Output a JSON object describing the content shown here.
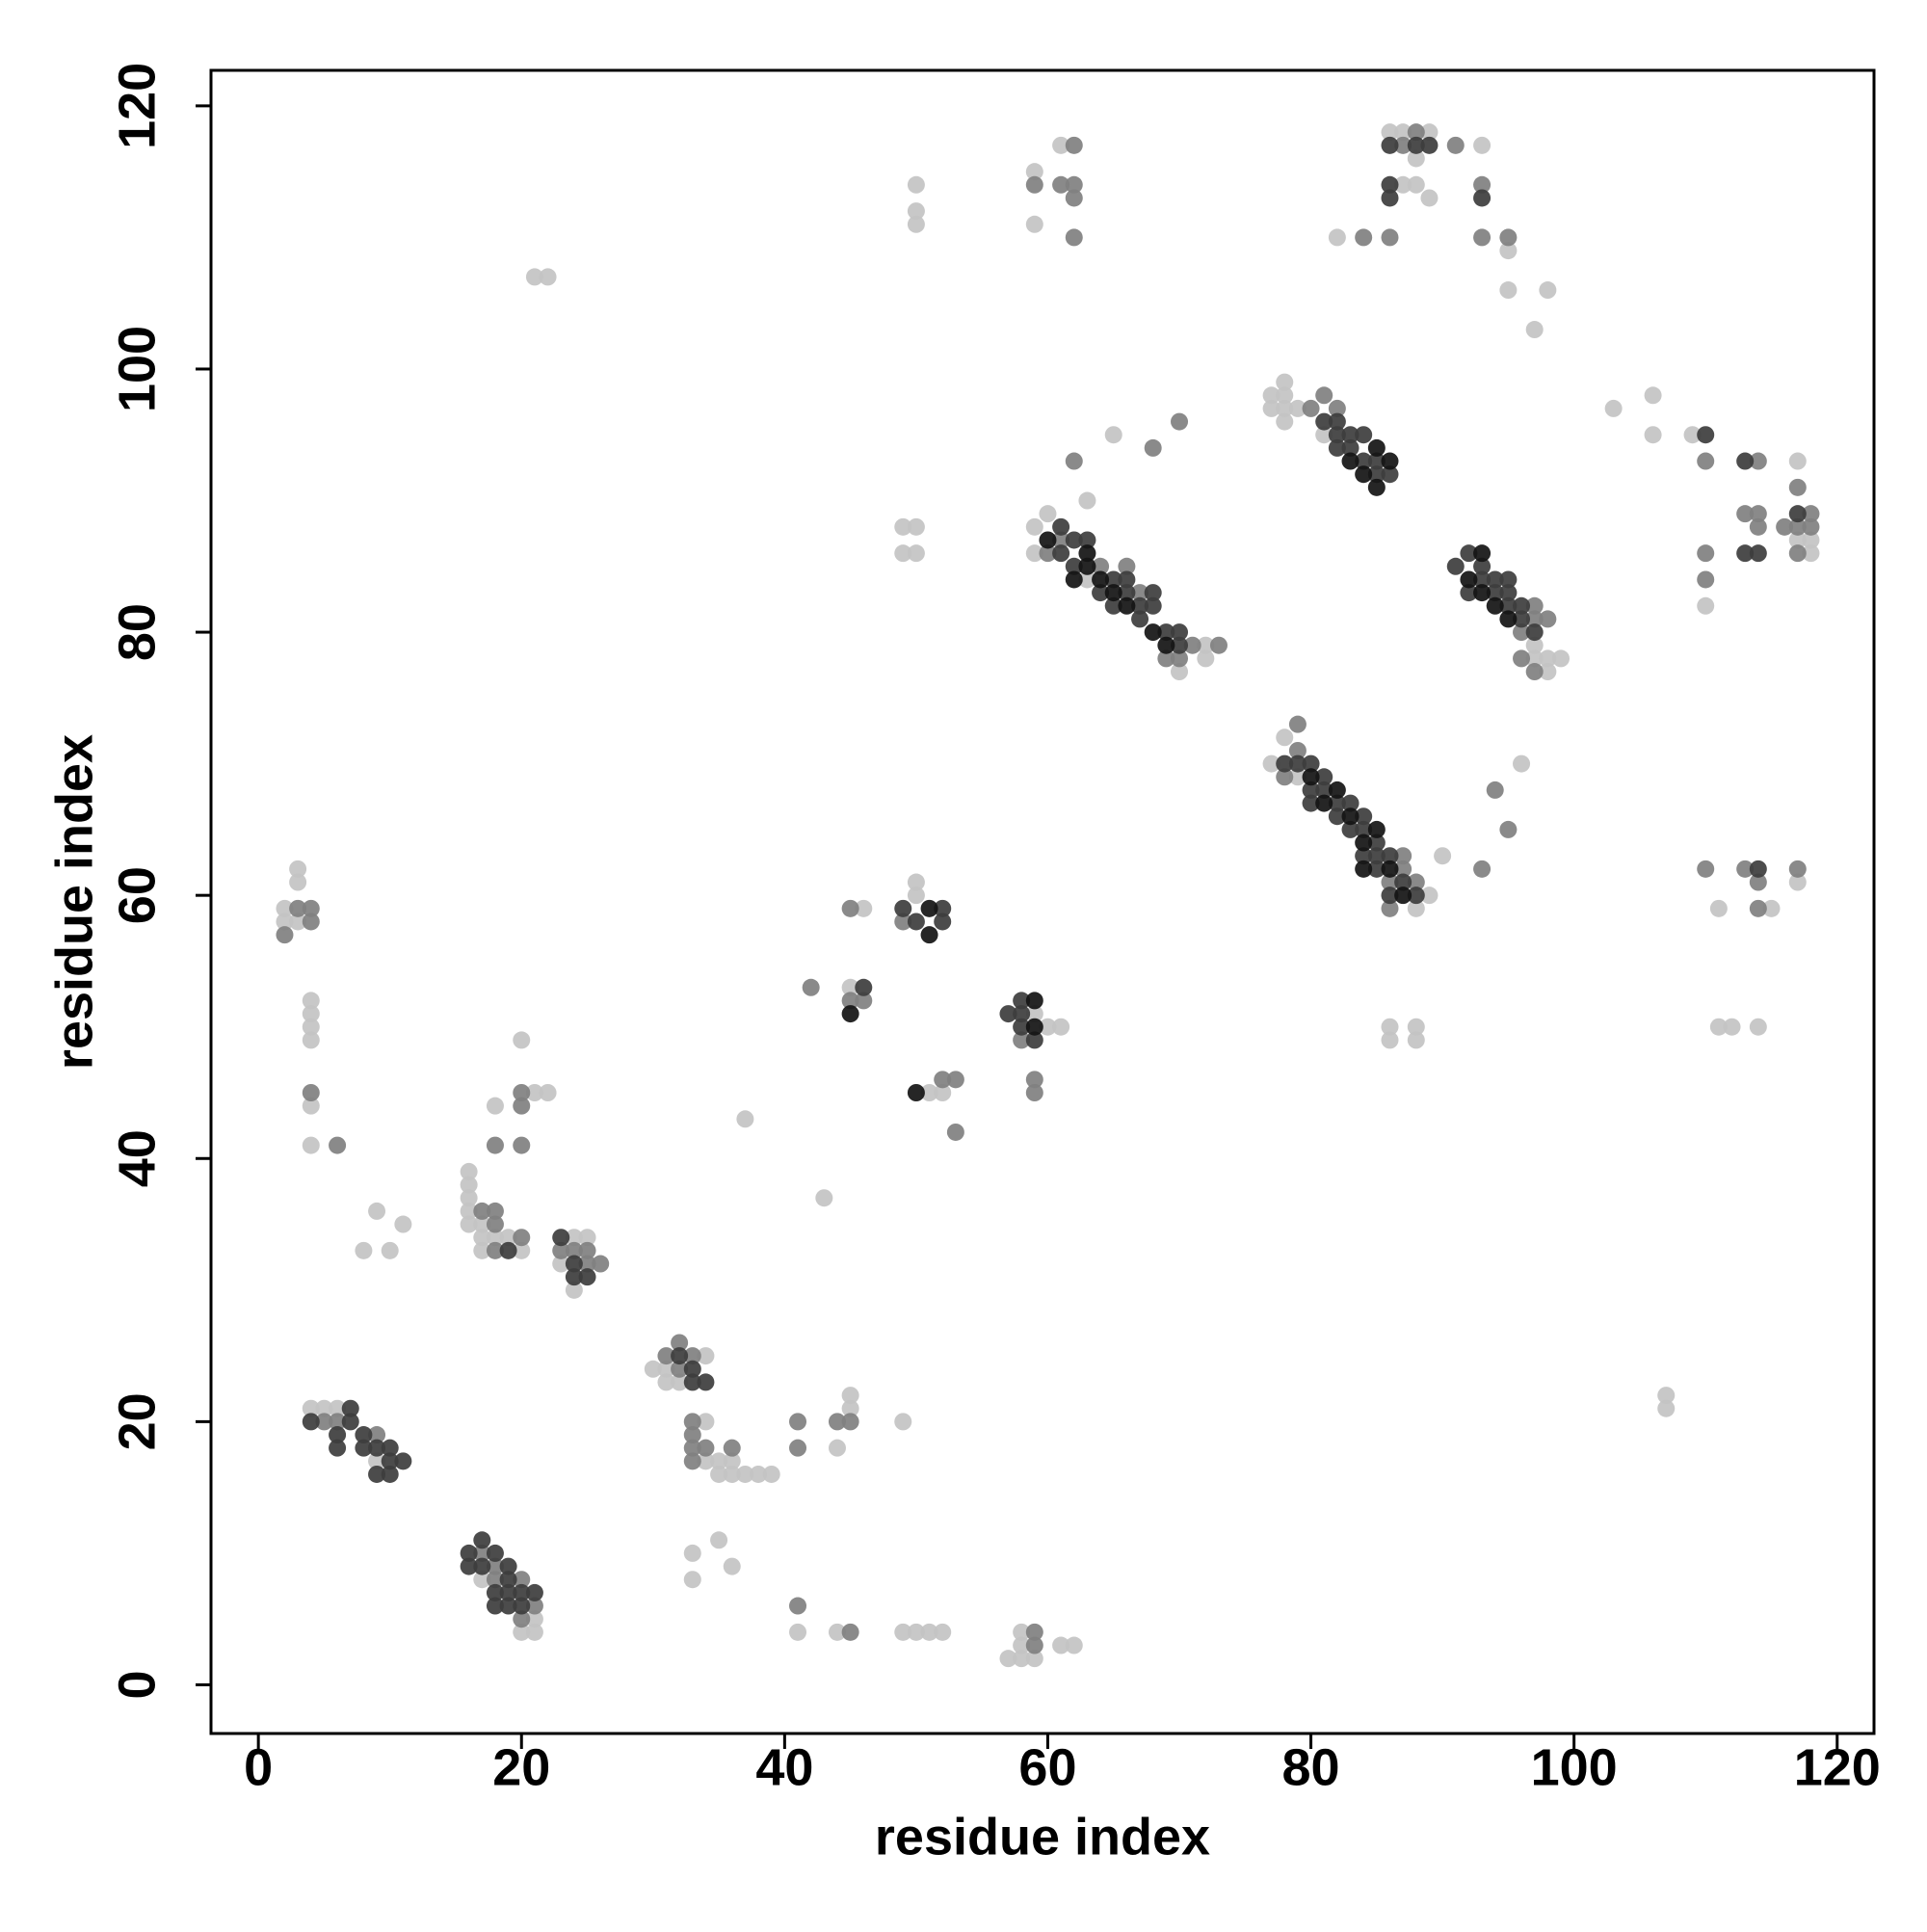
{
  "chart_data": {
    "type": "scatter",
    "xlabel": "residue index",
    "ylabel": "residue index",
    "xlim": [
      -3.6,
      122.8
    ],
    "ylim": [
      -3.7,
      122.7
    ],
    "xticks": [
      0,
      20,
      40,
      60,
      80,
      100,
      120
    ],
    "yticks": [
      0,
      20,
      40,
      60,
      80,
      100,
      120
    ],
    "series": [
      {
        "color": "#c3c3c3",
        "x": [
          3,
          3,
          2,
          2,
          3,
          4,
          4,
          4,
          4,
          4,
          4,
          4,
          5,
          6,
          9,
          17,
          20,
          21,
          21,
          16,
          16,
          16,
          16,
          16,
          17,
          17,
          18,
          19,
          20,
          17,
          18,
          8,
          9,
          10,
          11,
          20,
          21,
          22,
          21,
          22,
          23,
          24,
          24,
          25,
          30,
          31,
          31,
          32,
          34,
          34,
          34,
          35,
          35,
          36,
          36,
          37,
          38,
          39,
          33,
          33,
          35,
          36,
          37,
          43,
          44,
          45,
          45,
          41,
          44,
          49,
          49,
          50,
          51,
          52,
          46,
          45,
          50,
          50,
          51,
          52,
          49,
          50,
          49,
          50,
          50,
          50,
          50,
          59,
          60,
          61,
          57,
          58,
          58,
          58,
          59,
          61,
          62,
          59,
          59,
          61,
          59,
          59,
          60,
          63,
          65,
          63,
          70,
          72,
          72,
          77,
          78,
          79,
          77,
          77,
          78,
          78,
          78,
          78,
          79,
          81,
          86,
          86,
          88,
          88,
          88,
          89,
          96,
          97,
          97,
          98,
          98,
          99,
          82,
          86,
          87,
          87,
          88,
          88,
          89,
          89,
          93,
          95,
          95,
          97,
          98,
          103,
          106,
          106,
          109,
          110,
          117,
          118,
          118,
          117,
          111,
          115,
          117,
          111,
          112,
          114,
          107,
          107,
          90
        ],
        "y": [
          62,
          61,
          59,
          58,
          58,
          52,
          51,
          50,
          49,
          44,
          41,
          21,
          21,
          21,
          17,
          8,
          4,
          5,
          4,
          39,
          38,
          37,
          36,
          35,
          35,
          34,
          34,
          34,
          33,
          33,
          44,
          33,
          36,
          33,
          35,
          49,
          45,
          45,
          107,
          107,
          32,
          30,
          34,
          34,
          24,
          24,
          23,
          23,
          25,
          20,
          17,
          17,
          16,
          17,
          16,
          16,
          16,
          16,
          10,
          8,
          11,
          9,
          43,
          37,
          18,
          21,
          22,
          4,
          4,
          20,
          4,
          4,
          4,
          4,
          59,
          53,
          61,
          60,
          45,
          45,
          88,
          88,
          86,
          86,
          114,
          112,
          111,
          51,
          50,
          50,
          2,
          2,
          3,
          4,
          2,
          3,
          3,
          115,
          111,
          117,
          88,
          86,
          89,
          84,
          95,
          90,
          77,
          79,
          78,
          70,
          72,
          69,
          98,
          97,
          99,
          98,
          97,
          96,
          97,
          95,
          50,
          49,
          50,
          49,
          59,
          60,
          70,
          79,
          78,
          78,
          77,
          78,
          110,
          118,
          118,
          114,
          116,
          114,
          118,
          113,
          117,
          109,
          106,
          103,
          106,
          97,
          98,
          95,
          95,
          82,
          93,
          87,
          86,
          87,
          59,
          59,
          61,
          50,
          50,
          50,
          22,
          21,
          63
        ]
      },
      {
        "color": "#808080",
        "x": [
          3,
          4,
          4,
          2,
          4,
          6,
          5,
          6,
          9,
          20,
          18,
          20,
          21,
          17,
          18,
          17,
          18,
          18,
          18,
          20,
          18,
          20,
          20,
          20,
          23,
          24,
          25,
          26,
          25,
          31,
          32,
          32,
          33,
          33,
          33,
          33,
          33,
          34,
          36,
          42,
          41,
          41,
          44,
          45,
          41,
          45,
          45,
          45,
          46,
          49,
          52,
          53,
          53,
          59,
          59,
          58,
          59,
          59,
          61,
          62,
          62,
          62,
          62,
          59,
          60,
          61,
          64,
          66,
          67,
          69,
          70,
          71,
          73,
          62,
          68,
          70,
          78,
          79,
          79,
          80,
          81,
          82,
          86,
          87,
          87,
          86,
          88,
          93,
          94,
          95,
          96,
          97,
          97,
          96,
          98,
          97,
          84,
          86,
          87,
          88,
          91,
          93,
          93,
          95,
          110,
          110,
          110,
          114,
          113,
          114,
          114,
          116,
          117,
          117,
          117,
          118,
          118,
          110,
          113,
          114,
          114,
          117
        ],
        "y": [
          59,
          59,
          58,
          57,
          45,
          41,
          20,
          20,
          19,
          8,
          8,
          5,
          6,
          10,
          9,
          36,
          36,
          35,
          33,
          34,
          41,
          41,
          45,
          44,
          33,
          33,
          33,
          32,
          32,
          25,
          26,
          24,
          25,
          20,
          19,
          18,
          17,
          18,
          18,
          53,
          20,
          18,
          20,
          20,
          6,
          4,
          59,
          52,
          52,
          58,
          46,
          46,
          42,
          46,
          45,
          49,
          4,
          3,
          114,
          117,
          114,
          113,
          110,
          114,
          86,
          87,
          85,
          85,
          83,
          78,
          78,
          79,
          79,
          93,
          94,
          96,
          69,
          73,
          71,
          97,
          98,
          97,
          61,
          62,
          63,
          59,
          61,
          62,
          68,
          65,
          80,
          82,
          81,
          78,
          81,
          77,
          110,
          110,
          117,
          118,
          117,
          114,
          110,
          110,
          93,
          86,
          84,
          93,
          89,
          89,
          88,
          88,
          91,
          88,
          86,
          89,
          88,
          62,
          62,
          59,
          61,
          62
        ]
      },
      {
        "color": "#3d3d3d",
        "x": [
          4,
          6,
          6,
          7,
          7,
          8,
          8,
          9,
          9,
          10,
          10,
          10,
          11,
          16,
          16,
          17,
          17,
          18,
          18,
          18,
          19,
          19,
          19,
          19,
          20,
          20,
          21,
          19,
          23,
          24,
          25,
          24,
          32,
          33,
          33,
          34,
          49,
          50,
          52,
          52,
          46,
          58,
          58,
          58,
          57,
          59,
          61,
          61,
          62,
          62,
          63,
          64,
          65,
          65,
          66,
          66,
          67,
          67,
          68,
          68,
          69,
          70,
          70,
          78,
          79,
          80,
          80,
          80,
          81,
          81,
          82,
          82,
          83,
          83,
          84,
          84,
          84,
          85,
          85,
          85,
          86,
          86,
          87,
          88,
          81,
          82,
          82,
          82,
          83,
          83,
          84,
          84,
          85,
          85,
          86,
          91,
          92,
          92,
          93,
          93,
          94,
          94,
          95,
          95,
          95,
          96,
          96,
          97,
          86,
          86,
          86,
          88,
          89,
          93,
          110,
          113,
          113,
          114,
          114,
          117
        ],
        "y": [
          20,
          18,
          19,
          20,
          21,
          19,
          18,
          18,
          16,
          18,
          17,
          16,
          17,
          10,
          9,
          11,
          9,
          10,
          7,
          6,
          9,
          8,
          7,
          6,
          7,
          6,
          7,
          33,
          34,
          32,
          31,
          31,
          25,
          24,
          23,
          23,
          59,
          58,
          59,
          58,
          53,
          52,
          51,
          50,
          51,
          49,
          86,
          88,
          87,
          85,
          87,
          83,
          84,
          82,
          84,
          83,
          82,
          81,
          83,
          82,
          80,
          80,
          79,
          70,
          70,
          70,
          68,
          67,
          69,
          68,
          67,
          66,
          67,
          65,
          66,
          65,
          63,
          64,
          63,
          62,
          63,
          60,
          61,
          60,
          96,
          96,
          95,
          94,
          95,
          94,
          95,
          93,
          93,
          92,
          92,
          85,
          86,
          83,
          85,
          84,
          84,
          83,
          84,
          83,
          82,
          82,
          81,
          80,
          117,
          114,
          113,
          117,
          117,
          113,
          95,
          93,
          86,
          86,
          62,
          89
        ]
      },
      {
        "color": "#141414",
        "x": [
          45,
          51,
          50,
          51,
          59,
          59,
          60,
          62,
          63,
          64,
          65,
          66,
          68,
          69,
          80,
          81,
          82,
          83,
          84,
          84,
          85,
          86,
          87,
          83,
          84,
          85,
          86,
          85,
          92,
          93,
          93,
          94,
          95,
          63
        ],
        "y": [
          51,
          57,
          45,
          59,
          52,
          50,
          87,
          84,
          86,
          84,
          83,
          82,
          80,
          79,
          69,
          67,
          68,
          66,
          64,
          62,
          65,
          62,
          60,
          93,
          92,
          91,
          93,
          94,
          84,
          83,
          86,
          82,
          81,
          85
        ]
      }
    ]
  }
}
